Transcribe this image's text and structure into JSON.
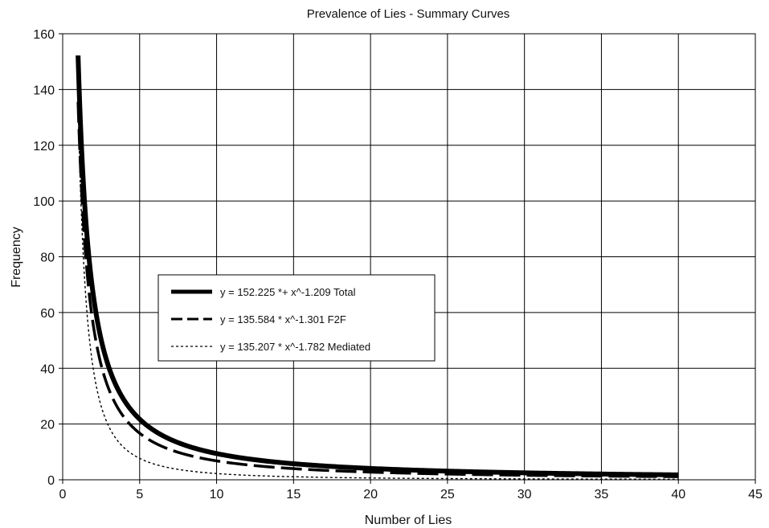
{
  "chart_data": {
    "type": "line",
    "title": "Prevalence of Lies - Summary Curves",
    "xlabel": "Number of Lies",
    "ylabel": "Frequency",
    "xlim": [
      0,
      45
    ],
    "ylim": [
      0,
      160
    ],
    "xticks": [
      0,
      5,
      10,
      15,
      20,
      25,
      30,
      35,
      40,
      45
    ],
    "yticks": [
      0,
      20,
      40,
      60,
      80,
      100,
      120,
      140,
      160
    ],
    "grid": true,
    "legend_position": "center-left",
    "x_range": [
      1,
      40
    ],
    "series": [
      {
        "name": "Total",
        "a": 152.225,
        "b": -1.209,
        "style": "solid-thick",
        "legend": "y = 152.225 *+ x^-1.209  Total"
      },
      {
        "name": "F2F",
        "a": 135.584,
        "b": -1.301,
        "style": "dashed",
        "legend": "y = 135.584 * x^-1.301  F2F"
      },
      {
        "name": "Mediated",
        "a": 135.207,
        "b": -1.782,
        "style": "dotted",
        "legend": "y = 135.207 * x^-1.782  Mediated"
      }
    ]
  }
}
